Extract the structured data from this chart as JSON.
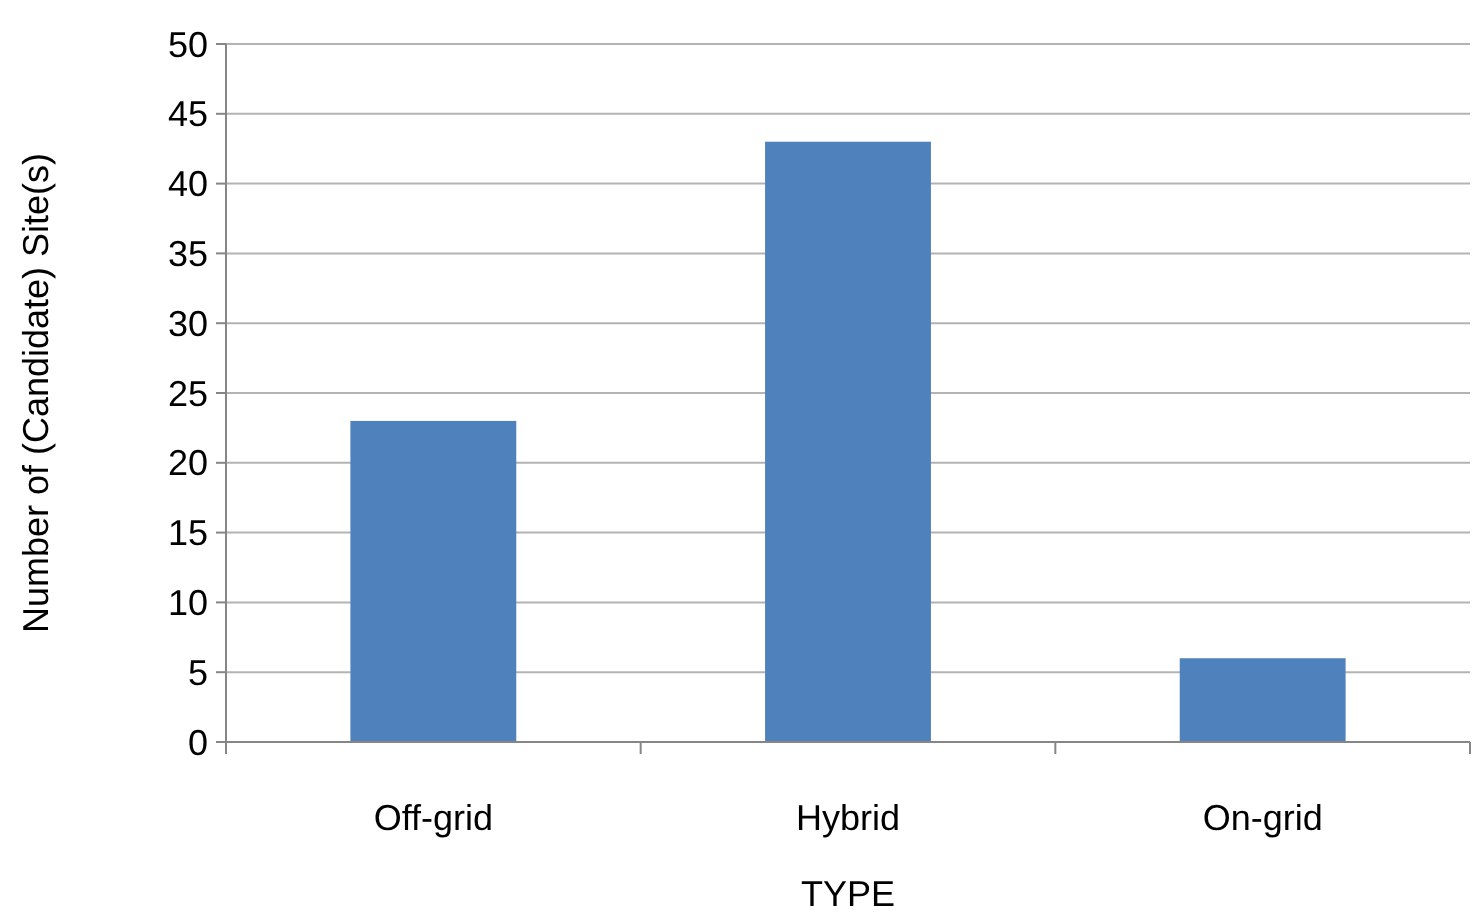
{
  "chart_data": {
    "type": "bar",
    "xlabel": "TYPE",
    "ylabel": "Number of (Candidate) Site(s)",
    "categories": [
      "Off-grid",
      "Hybrid",
      "On-grid"
    ],
    "values": [
      23,
      43,
      6
    ],
    "color": "#4f81bd",
    "ylim": [
      0,
      50
    ],
    "yticks": [
      0,
      5,
      10,
      15,
      20,
      25,
      30,
      35,
      40,
      45,
      50
    ],
    "grid": "y"
  }
}
